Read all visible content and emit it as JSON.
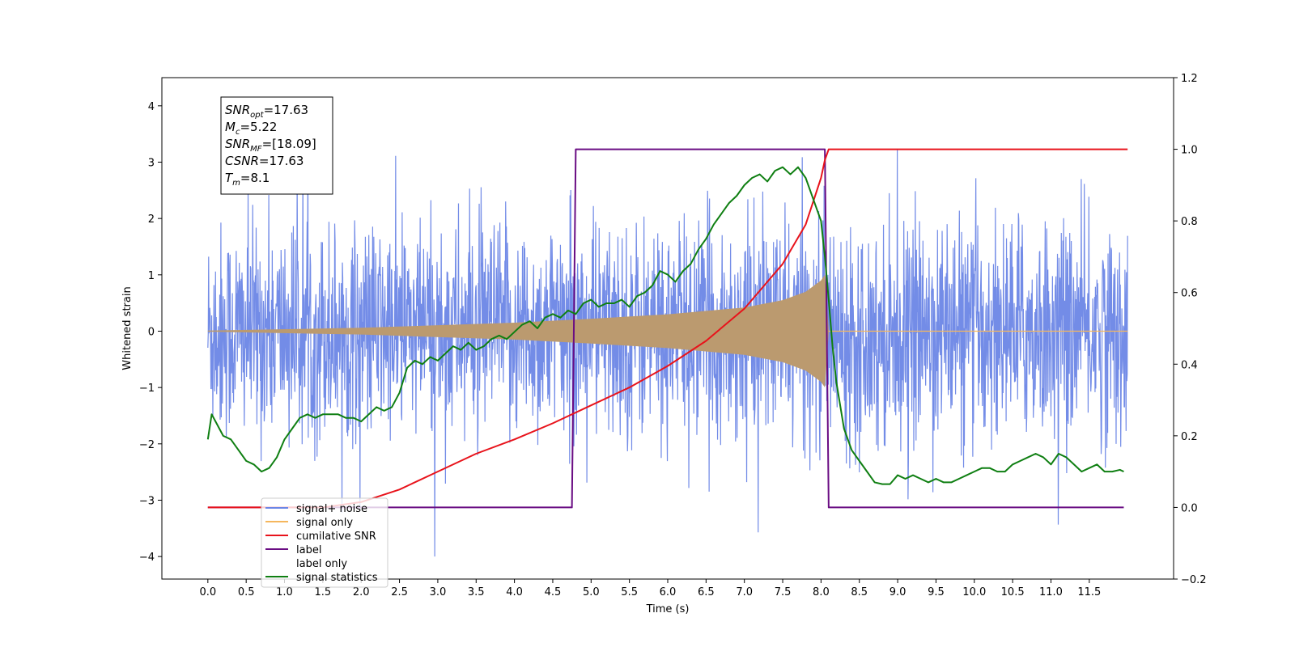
{
  "chart_data": {
    "type": "line",
    "title": "",
    "xlabel": "Time (s)",
    "ylabel": "Whitened strain",
    "y2label": "",
    "xlim": [
      -0.6,
      12.6
    ],
    "ylim": [
      -4.4,
      4.5
    ],
    "y2lim": [
      -0.2,
      1.2
    ],
    "xticks": [
      "0.0",
      "0.5",
      "1.0",
      "1.5",
      "2.0",
      "2.5",
      "3.0",
      "3.5",
      "4.0",
      "4.5",
      "5.0",
      "5.5",
      "6.0",
      "6.5",
      "7.0",
      "7.5",
      "8.0",
      "8.5",
      "9.0",
      "9.5",
      "10.0",
      "10.5",
      "11.0",
      "11.5"
    ],
    "yticks": [
      "4",
      "3",
      "2",
      "1",
      "0",
      "−1",
      "−2",
      "−3",
      "−4"
    ],
    "y2ticks": [
      "1.2",
      "1.0",
      "0.8",
      "0.6",
      "0.4",
      "0.2",
      "0.0",
      "−0.2"
    ],
    "annotation": {
      "lines": [
        {
          "sym": "SNR",
          "sub": "opt",
          "val": "=17.63"
        },
        {
          "sym": "M",
          "sub": "c",
          "val": "=5.22"
        },
        {
          "sym": "SNR",
          "sub": "MF",
          "val": "=[18.09]"
        },
        {
          "sym": "CSNR",
          "sub": "",
          "val": "=17.63"
        },
        {
          "sym": "T",
          "sub": "m",
          "val": "=8.1"
        }
      ]
    },
    "legend": {
      "placement": "lower-left",
      "entries": [
        "signal+ noise",
        "signal only",
        "cumilative SNR",
        "label",
        "label only",
        "signal statistics"
      ]
    },
    "series": [
      {
        "name": "signal+ noise",
        "axis": "left",
        "color": "#6b86e6",
        "x_range": [
          0,
          12.0
        ],
        "description_values": {
          "typical_envelope": [
            -2.3,
            2.4
          ],
          "max": 4.1,
          "min": -4.0
        }
      },
      {
        "name": "signal only",
        "axis": "left",
        "color": "#f5b75d",
        "x_range": [
          0,
          8.1
        ],
        "envelope_points": [
          [
            0,
            0.01
          ],
          [
            2,
            0.06
          ],
          [
            4,
            0.15
          ],
          [
            5,
            0.22
          ],
          [
            6,
            0.3
          ],
          [
            7,
            0.42
          ],
          [
            7.5,
            0.55
          ],
          [
            7.8,
            0.7
          ],
          [
            8.0,
            0.9
          ],
          [
            8.05,
            1.0
          ],
          [
            8.1,
            0.02
          ]
        ]
      },
      {
        "name": "cumilative SNR",
        "axis": "right",
        "color": "#e8131b",
        "x": [
          0.0,
          1.5,
          2.0,
          2.5,
          3.0,
          3.5,
          4.0,
          4.5,
          5.0,
          5.5,
          6.0,
          6.5,
          7.0,
          7.5,
          7.8,
          8.0,
          8.05,
          8.1,
          12.0
        ],
        "values": [
          0.0,
          0.0,
          0.015,
          0.05,
          0.1,
          0.15,
          0.19,
          0.235,
          0.285,
          0.335,
          0.395,
          0.465,
          0.555,
          0.68,
          0.79,
          0.92,
          0.97,
          1.0,
          1.0
        ]
      },
      {
        "name": "label",
        "axis": "right",
        "color": "#6a0d83",
        "x": [
          0.0,
          4.75,
          4.8,
          8.05,
          8.1,
          11.95
        ],
        "values": [
          0.0,
          0.0,
          1.0,
          1.0,
          0.0,
          0.0
        ]
      },
      {
        "name": "signal statistics",
        "axis": "right",
        "color": "#0f7f12",
        "x": [
          0.0,
          0.05,
          0.1,
          0.2,
          0.3,
          0.4,
          0.5,
          0.6,
          0.7,
          0.8,
          0.9,
          1.0,
          1.1,
          1.2,
          1.3,
          1.4,
          1.5,
          1.6,
          1.7,
          1.8,
          1.9,
          2.0,
          2.1,
          2.2,
          2.3,
          2.4,
          2.5,
          2.6,
          2.7,
          2.8,
          2.9,
          3.0,
          3.1,
          3.2,
          3.3,
          3.4,
          3.5,
          3.6,
          3.7,
          3.8,
          3.9,
          4.0,
          4.1,
          4.2,
          4.3,
          4.4,
          4.5,
          4.6,
          4.7,
          4.8,
          4.9,
          5.0,
          5.1,
          5.2,
          5.3,
          5.4,
          5.5,
          5.6,
          5.7,
          5.8,
          5.9,
          6.0,
          6.1,
          6.2,
          6.3,
          6.4,
          6.5,
          6.6,
          6.7,
          6.8,
          6.9,
          7.0,
          7.1,
          7.2,
          7.3,
          7.4,
          7.5,
          7.6,
          7.7,
          7.8,
          7.9,
          8.0,
          8.05,
          8.1,
          8.15,
          8.2,
          8.3,
          8.4,
          8.5,
          8.6,
          8.7,
          8.8,
          8.9,
          9.0,
          9.1,
          9.2,
          9.3,
          9.4,
          9.5,
          9.6,
          9.7,
          9.8,
          9.9,
          10.0,
          10.1,
          10.2,
          10.3,
          10.4,
          10.5,
          10.6,
          10.7,
          10.8,
          10.9,
          11.0,
          11.1,
          11.2,
          11.3,
          11.4,
          11.5,
          11.6,
          11.7,
          11.8,
          11.9,
          11.95
        ],
        "values": [
          0.19,
          0.26,
          0.24,
          0.2,
          0.19,
          0.16,
          0.13,
          0.12,
          0.1,
          0.11,
          0.14,
          0.19,
          0.22,
          0.25,
          0.26,
          0.25,
          0.26,
          0.26,
          0.26,
          0.25,
          0.25,
          0.24,
          0.26,
          0.28,
          0.27,
          0.28,
          0.32,
          0.39,
          0.41,
          0.4,
          0.42,
          0.41,
          0.43,
          0.45,
          0.44,
          0.46,
          0.44,
          0.45,
          0.47,
          0.48,
          0.47,
          0.49,
          0.51,
          0.52,
          0.5,
          0.53,
          0.54,
          0.53,
          0.55,
          0.54,
          0.57,
          0.58,
          0.56,
          0.57,
          0.57,
          0.58,
          0.56,
          0.59,
          0.6,
          0.62,
          0.66,
          0.65,
          0.63,
          0.66,
          0.68,
          0.72,
          0.75,
          0.79,
          0.82,
          0.85,
          0.87,
          0.9,
          0.92,
          0.93,
          0.91,
          0.94,
          0.95,
          0.93,
          0.95,
          0.92,
          0.86,
          0.8,
          0.7,
          0.58,
          0.45,
          0.35,
          0.22,
          0.16,
          0.13,
          0.1,
          0.07,
          0.065,
          0.065,
          0.09,
          0.08,
          0.09,
          0.08,
          0.07,
          0.08,
          0.07,
          0.07,
          0.08,
          0.09,
          0.1,
          0.11,
          0.11,
          0.1,
          0.1,
          0.12,
          0.13,
          0.14,
          0.15,
          0.14,
          0.12,
          0.15,
          0.14,
          0.12,
          0.1,
          0.11,
          0.12,
          0.1,
          0.1,
          0.105,
          0.1
        ]
      }
    ],
    "grid": false
  }
}
